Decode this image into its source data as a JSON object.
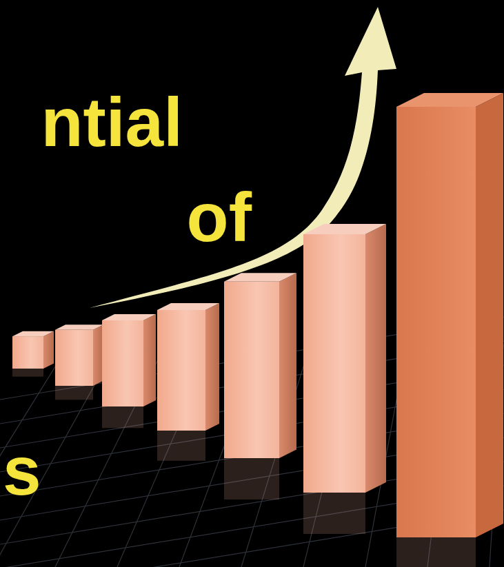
{
  "chart_data": {
    "type": "bar",
    "annotations": [
      "ntial",
      "of",
      "s"
    ],
    "categories": [
      null,
      null,
      null,
      null,
      null,
      null,
      null
    ],
    "values": [
      7.5,
      13,
      20,
      28,
      41,
      60,
      100
    ],
    "ylim": [
      0,
      100
    ],
    "yticks": [],
    "tick_labels": false,
    "grid": false
  }
}
